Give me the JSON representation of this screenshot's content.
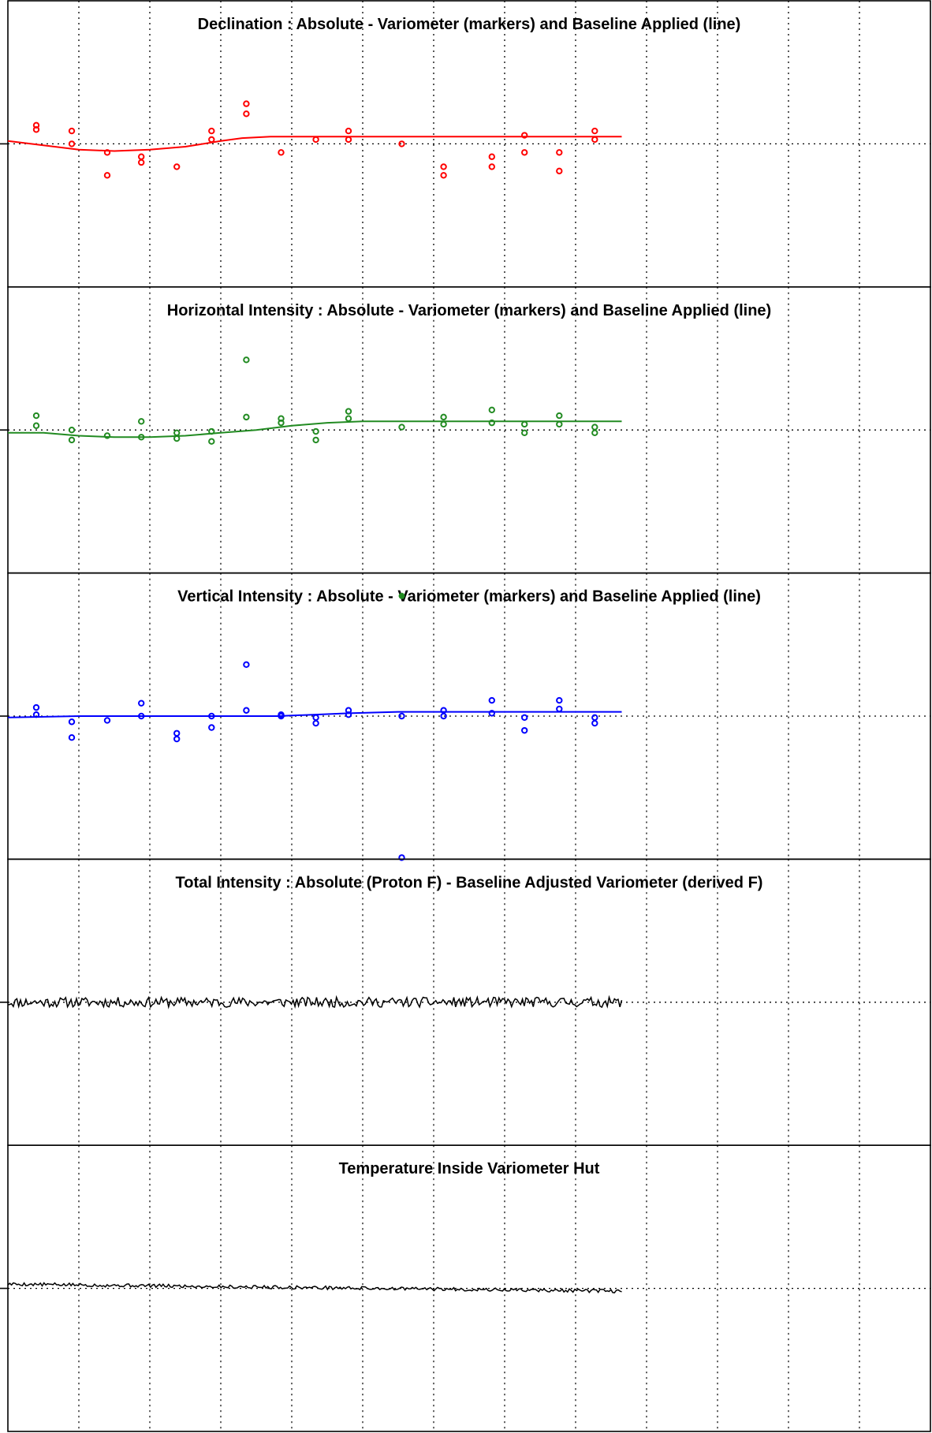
{
  "figure": {
    "background": "#ffffff",
    "frame_color": "#000000",
    "grid_color": "#000000"
  },
  "chart_data": [
    {
      "type": "scatter",
      "title": "Declination : Absolute - Variometer (markers) and Baseline Applied (line)",
      "color": "#ff0000",
      "xlim": [
        0,
        13
      ],
      "ylim": [
        -1,
        1
      ],
      "xticks": [
        1,
        2,
        3,
        4,
        5,
        6,
        7,
        8,
        9,
        10,
        11,
        12
      ],
      "y_reference": 0,
      "grid": true,
      "markers": [
        {
          "x": 0.4,
          "y": 0.13
        },
        {
          "x": 0.4,
          "y": 0.1
        },
        {
          "x": 0.9,
          "y": 0.09
        },
        {
          "x": 0.9,
          "y": 0.0
        },
        {
          "x": 1.4,
          "y": -0.06
        },
        {
          "x": 1.4,
          "y": -0.22
        },
        {
          "x": 1.88,
          "y": -0.09
        },
        {
          "x": 1.88,
          "y": -0.13
        },
        {
          "x": 2.38,
          "y": -0.16
        },
        {
          "x": 2.87,
          "y": 0.09
        },
        {
          "x": 2.87,
          "y": 0.03
        },
        {
          "x": 3.36,
          "y": 0.28
        },
        {
          "x": 3.36,
          "y": 0.21
        },
        {
          "x": 3.85,
          "y": -0.06
        },
        {
          "x": 4.34,
          "y": 0.03
        },
        {
          "x": 4.8,
          "y": 0.09
        },
        {
          "x": 4.8,
          "y": 0.03
        },
        {
          "x": 5.55,
          "y": 0.0
        },
        {
          "x": 6.14,
          "y": -0.16
        },
        {
          "x": 6.14,
          "y": -0.22
        },
        {
          "x": 6.82,
          "y": -0.09
        },
        {
          "x": 6.82,
          "y": -0.16
        },
        {
          "x": 7.28,
          "y": 0.06
        },
        {
          "x": 7.28,
          "y": -0.06
        },
        {
          "x": 7.77,
          "y": -0.06
        },
        {
          "x": 7.77,
          "y": -0.19
        },
        {
          "x": 8.27,
          "y": 0.09
        },
        {
          "x": 8.27,
          "y": 0.03
        }
      ],
      "baseline": [
        {
          "x": 0.0,
          "y": 0.02
        },
        {
          "x": 0.5,
          "y": -0.01
        },
        {
          "x": 1.0,
          "y": -0.04
        },
        {
          "x": 1.5,
          "y": -0.05
        },
        {
          "x": 2.0,
          "y": -0.04
        },
        {
          "x": 2.5,
          "y": -0.02
        },
        {
          "x": 3.0,
          "y": 0.02
        },
        {
          "x": 3.3,
          "y": 0.04
        },
        {
          "x": 3.7,
          "y": 0.05
        },
        {
          "x": 4.3,
          "y": 0.05
        },
        {
          "x": 5.5,
          "y": 0.05
        },
        {
          "x": 7.0,
          "y": 0.05
        },
        {
          "x": 8.65,
          "y": 0.05
        }
      ]
    },
    {
      "type": "scatter",
      "title": "Horizontal Intensity : Absolute - Variometer (markers) and Baseline Applied (line)",
      "color": "#228b22",
      "xlim": [
        0,
        13
      ],
      "ylim": [
        -1,
        1
      ],
      "xticks": [
        1,
        2,
        3,
        4,
        5,
        6,
        7,
        8,
        9,
        10,
        11,
        12
      ],
      "y_reference": 0,
      "grid": true,
      "markers": [
        {
          "x": 0.4,
          "y": 0.1
        },
        {
          "x": 0.4,
          "y": 0.03
        },
        {
          "x": 0.9,
          "y": 0.0
        },
        {
          "x": 0.9,
          "y": -0.07
        },
        {
          "x": 1.4,
          "y": -0.04
        },
        {
          "x": 1.88,
          "y": 0.06
        },
        {
          "x": 1.88,
          "y": -0.05
        },
        {
          "x": 2.38,
          "y": -0.02
        },
        {
          "x": 2.38,
          "y": -0.06
        },
        {
          "x": 2.87,
          "y": -0.01
        },
        {
          "x": 2.87,
          "y": -0.08
        },
        {
          "x": 3.36,
          "y": 0.49
        },
        {
          "x": 3.36,
          "y": 0.09
        },
        {
          "x": 3.85,
          "y": 0.08
        },
        {
          "x": 3.85,
          "y": 0.05
        },
        {
          "x": 4.34,
          "y": -0.01
        },
        {
          "x": 4.34,
          "y": -0.07
        },
        {
          "x": 4.8,
          "y": 0.13
        },
        {
          "x": 4.8,
          "y": 0.08
        },
        {
          "x": 5.55,
          "y": 0.02
        },
        {
          "x": 6.14,
          "y": 0.09
        },
        {
          "x": 6.14,
          "y": 0.04
        },
        {
          "x": 6.82,
          "y": 0.14
        },
        {
          "x": 6.82,
          "y": 0.05
        },
        {
          "x": 7.28,
          "y": 0.04
        },
        {
          "x": 7.28,
          "y": -0.02
        },
        {
          "x": 7.77,
          "y": 0.1
        },
        {
          "x": 7.77,
          "y": 0.04
        },
        {
          "x": 8.27,
          "y": 0.02
        },
        {
          "x": 8.27,
          "y": -0.02
        }
      ],
      "baseline": [
        {
          "x": 0.0,
          "y": -0.02
        },
        {
          "x": 0.5,
          "y": -0.02
        },
        {
          "x": 1.0,
          "y": -0.04
        },
        {
          "x": 1.5,
          "y": -0.05
        },
        {
          "x": 2.0,
          "y": -0.05
        },
        {
          "x": 2.5,
          "y": -0.04
        },
        {
          "x": 3.0,
          "y": -0.02
        },
        {
          "x": 3.5,
          "y": 0.0
        },
        {
          "x": 4.0,
          "y": 0.03
        },
        {
          "x": 4.5,
          "y": 0.05
        },
        {
          "x": 5.0,
          "y": 0.06
        },
        {
          "x": 6.0,
          "y": 0.06
        },
        {
          "x": 7.0,
          "y": 0.06
        },
        {
          "x": 8.65,
          "y": 0.06
        }
      ]
    },
    {
      "type": "scatter",
      "title": "Vertical Intensity : Absolute - Variometer (markers) and Baseline Applied (line)",
      "color": "#0000ff",
      "xlim": [
        0,
        13
      ],
      "ylim": [
        -1,
        1
      ],
      "xticks": [
        1,
        2,
        3,
        4,
        5,
        6,
        7,
        8,
        9,
        10,
        11,
        12
      ],
      "y_reference": 0,
      "grid": true,
      "markers": [
        {
          "x": 0.4,
          "y": 0.06
        },
        {
          "x": 0.4,
          "y": 0.01
        },
        {
          "x": 0.9,
          "y": -0.04
        },
        {
          "x": 0.9,
          "y": -0.15
        },
        {
          "x": 1.4,
          "y": -0.03
        },
        {
          "x": 1.88,
          "y": 0.09
        },
        {
          "x": 1.88,
          "y": 0.0
        },
        {
          "x": 2.38,
          "y": -0.12
        },
        {
          "x": 2.38,
          "y": -0.16
        },
        {
          "x": 2.87,
          "y": 0.0
        },
        {
          "x": 2.87,
          "y": -0.08
        },
        {
          "x": 3.36,
          "y": 0.36
        },
        {
          "x": 3.36,
          "y": 0.04
        },
        {
          "x": 3.85,
          "y": 0.01
        },
        {
          "x": 3.85,
          "y": 0.0
        },
        {
          "x": 4.34,
          "y": -0.01
        },
        {
          "x": 4.34,
          "y": -0.05
        },
        {
          "x": 4.8,
          "y": 0.04
        },
        {
          "x": 4.8,
          "y": 0.01
        },
        {
          "x": 5.55,
          "y": 0.0
        },
        {
          "x": 5.55,
          "y": -1.0
        },
        {
          "x": 6.14,
          "y": 0.04
        },
        {
          "x": 6.14,
          "y": 0.0
        },
        {
          "x": 6.82,
          "y": 0.11
        },
        {
          "x": 6.82,
          "y": 0.02
        },
        {
          "x": 7.28,
          "y": -0.01
        },
        {
          "x": 7.28,
          "y": -0.1
        },
        {
          "x": 7.77,
          "y": 0.11
        },
        {
          "x": 7.77,
          "y": 0.05
        },
        {
          "x": 8.27,
          "y": -0.01
        },
        {
          "x": 8.27,
          "y": -0.05
        }
      ],
      "baseline": [
        {
          "x": 0.0,
          "y": -0.01
        },
        {
          "x": 1.0,
          "y": 0.0
        },
        {
          "x": 2.0,
          "y": 0.0
        },
        {
          "x": 3.0,
          "y": 0.0
        },
        {
          "x": 3.8,
          "y": 0.0
        },
        {
          "x": 4.3,
          "y": 0.01
        },
        {
          "x": 4.8,
          "y": 0.02
        },
        {
          "x": 5.5,
          "y": 0.03
        },
        {
          "x": 6.5,
          "y": 0.03
        },
        {
          "x": 7.5,
          "y": 0.03
        },
        {
          "x": 8.65,
          "y": 0.03
        }
      ],
      "outlier_green": {
        "x": 5.55,
        "y": 0.84
      }
    },
    {
      "type": "line",
      "title": "Total Intensity : Absolute (Proton F) - Baseline Adjusted Variometer (derived F)",
      "color": "#000000",
      "xlim": [
        0,
        13
      ],
      "ylim": [
        -1,
        1
      ],
      "xticks": [
        1,
        2,
        3,
        4,
        5,
        6,
        7,
        8,
        9,
        10,
        11,
        12
      ],
      "y_reference": 0,
      "grid": true,
      "x_end": 8.65,
      "noise_amplitude": 0.035,
      "seed": 11
    },
    {
      "type": "line",
      "title": "Temperature Inside Variometer Hut",
      "color": "#000000",
      "xlim": [
        0,
        13
      ],
      "ylim": [
        -1,
        1
      ],
      "xticks": [
        1,
        2,
        3,
        4,
        5,
        6,
        7,
        8,
        9,
        10,
        11,
        12
      ],
      "y_reference": 0,
      "grid": true,
      "x_end": 8.65,
      "noise_amplitude": 0.012,
      "trend": [
        0.03,
        -0.02
      ],
      "seed": 5
    }
  ]
}
